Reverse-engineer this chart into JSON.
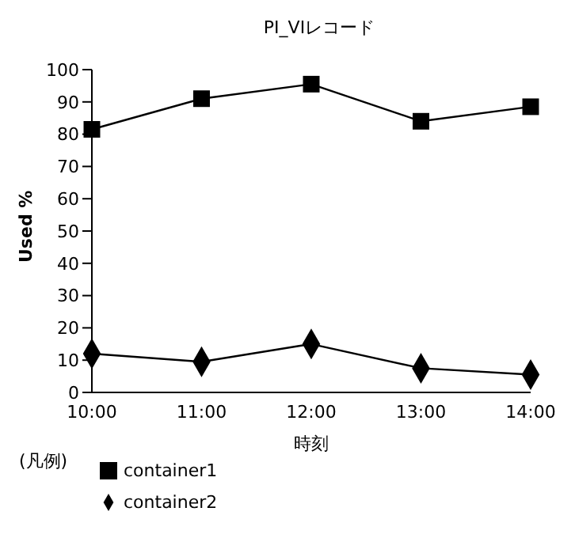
{
  "chart_data": {
    "type": "line",
    "title": "PI_VIレコード",
    "xlabel": "時刻",
    "ylabel": "Used %",
    "legend_title": "(凡例)",
    "categories": [
      "10:00",
      "11:00",
      "12:00",
      "13:00",
      "14:00"
    ],
    "series": [
      {
        "name": "container1",
        "color": "#000000",
        "marker": "square",
        "values": [
          81.5,
          91,
          95.5,
          84,
          88.5
        ]
      },
      {
        "name": "container2",
        "color": "#000000",
        "marker": "diamond",
        "values": [
          12,
          9.5,
          15,
          7.5,
          5.5
        ]
      }
    ],
    "ylim": [
      0,
      100
    ],
    "yticks": [
      0,
      10,
      20,
      30,
      40,
      50,
      60,
      70,
      80,
      90,
      100
    ],
    "grid": false,
    "legend": "bottom left",
    "line_style": "solid"
  }
}
